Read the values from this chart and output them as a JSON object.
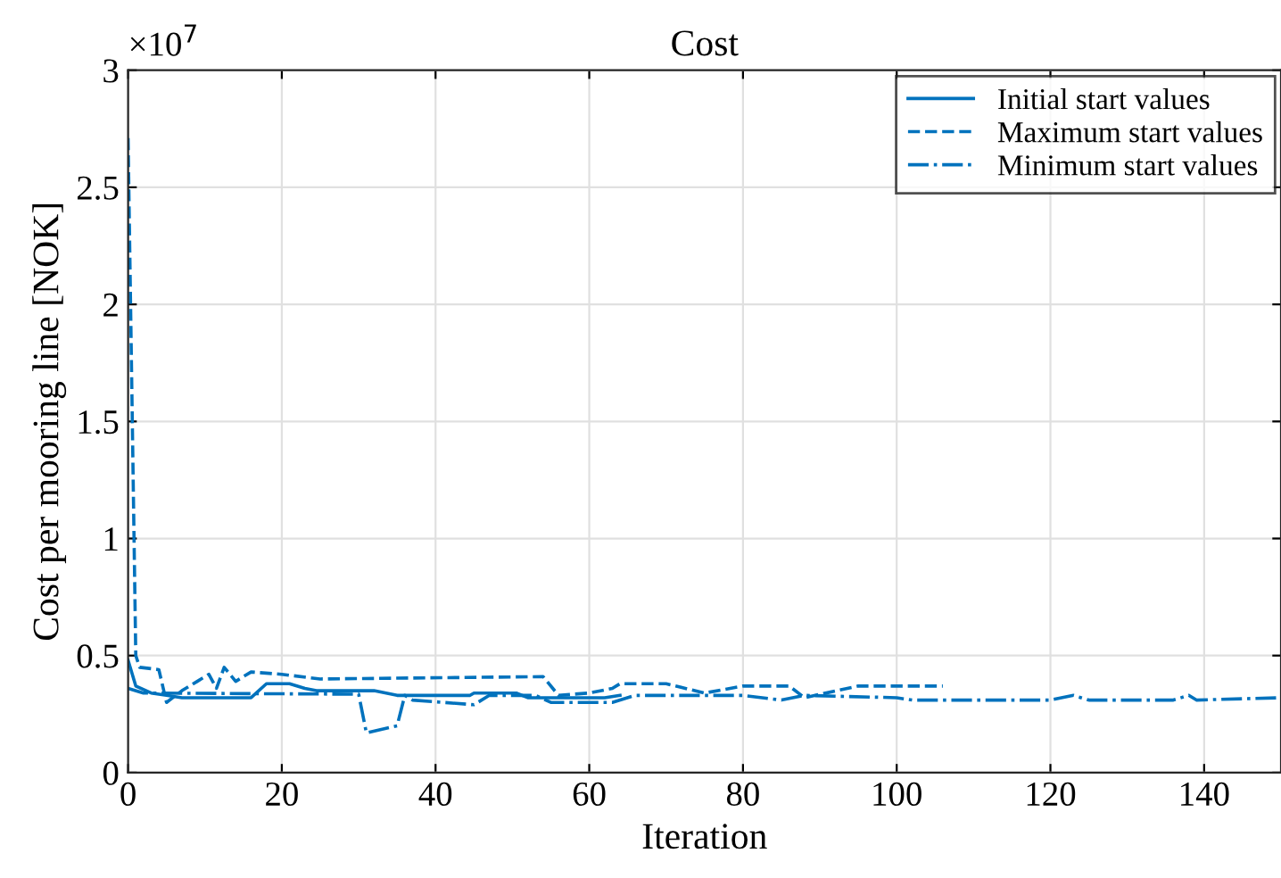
{
  "chart_data": {
    "type": "line",
    "title": "Cost",
    "xlabel": "Iteration",
    "ylabel": "Cost per mooring line [NOK]",
    "annotations": [
      "×10$^{7}$"
    ],
    "xlim": [
      0,
      150
    ],
    "xticks": [
      0,
      20,
      40,
      60,
      80,
      100,
      120,
      140
    ],
    "ylim": [
      0,
      3
    ],
    "yticks": [
      0,
      0.5,
      1,
      1.5,
      2,
      2.5,
      3
    ],
    "grid": true,
    "legend": "top right",
    "marker": "none",
    "series": [
      {
        "name": "Initial start values",
        "color": "#0072bd",
        "line_style": "solid",
        "x": [
          0,
          1,
          3,
          5,
          7,
          16,
          18,
          21,
          23,
          24.5,
          32,
          35,
          44.5,
          45,
          50.5,
          52,
          62,
          64
        ],
        "values": [
          0.48,
          0.37,
          0.34,
          0.33,
          0.32,
          0.32,
          0.38,
          0.38,
          0.36,
          0.35,
          0.35,
          0.33,
          0.33,
          0.34,
          0.34,
          0.32,
          0.32,
          0.33
        ]
      },
      {
        "name": "Maximum start values",
        "color": "#0072bd",
        "line_style": "dashed",
        "x": [
          0,
          1,
          1.5,
          4,
          5,
          7,
          9,
          10.5,
          11.5,
          12.5,
          14,
          16,
          20,
          25,
          54,
          56,
          60,
          63,
          64,
          70,
          75,
          80,
          86,
          88,
          95,
          106
        ],
        "values": [
          2.71,
          0.5,
          0.45,
          0.44,
          0.3,
          0.35,
          0.39,
          0.42,
          0.36,
          0.45,
          0.39,
          0.43,
          0.42,
          0.4,
          0.41,
          0.33,
          0.34,
          0.36,
          0.38,
          0.38,
          0.34,
          0.37,
          0.37,
          0.32,
          0.37,
          0.37
        ]
      },
      {
        "name": "Minimum start values",
        "color": "#0072bd",
        "line_style": "dashdot",
        "x": [
          0,
          2,
          30,
          31,
          35,
          36,
          37,
          45,
          47,
          53,
          55,
          63,
          66,
          80,
          85,
          88,
          100,
          102,
          120,
          123,
          125,
          136,
          138,
          139,
          150
        ],
        "values": [
          0.36,
          0.34,
          0.335,
          0.17,
          0.2,
          0.33,
          0.31,
          0.29,
          0.33,
          0.33,
          0.3,
          0.3,
          0.33,
          0.33,
          0.31,
          0.33,
          0.32,
          0.31,
          0.31,
          0.33,
          0.31,
          0.31,
          0.33,
          0.31,
          0.32
        ]
      }
    ]
  }
}
